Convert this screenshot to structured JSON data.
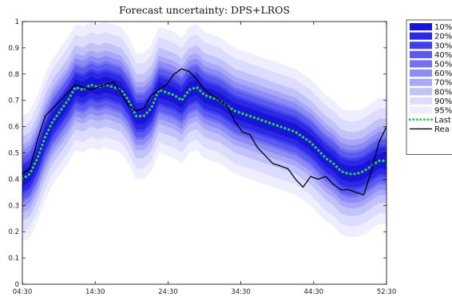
{
  "chart_data": {
    "type": "area",
    "title": "Forecast uncertainty: DPS+LROS",
    "xlabel": "",
    "ylabel": "",
    "xlim": [
      0,
      48
    ],
    "ylim": [
      0,
      1
    ],
    "x_ticks": [
      "04:30",
      "14:30",
      "24:30",
      "34:30",
      "44:30",
      "52:30"
    ],
    "y_ticks": [
      "0",
      "0.1",
      "0.2",
      "0.3",
      "0.4",
      "0.5",
      "0.6",
      "0.7",
      "0.8",
      "0.9",
      "1"
    ],
    "grid": false,
    "legend_position": "outside-right",
    "x": [
      0,
      1,
      2,
      3,
      4,
      5,
      6,
      7,
      8,
      9,
      10,
      11,
      12,
      13,
      14,
      15,
      16,
      17,
      18,
      19,
      20,
      21,
      22,
      23,
      24,
      25,
      26,
      27,
      28,
      29,
      30,
      31,
      32,
      33,
      34,
      35,
      36,
      37,
      38,
      39,
      40,
      41,
      42,
      43,
      44,
      45,
      46,
      47,
      48
    ],
    "bands": [
      {
        "label": "10%",
        "color": "#1a14d6",
        "width": [
          0.03,
          0.03,
          0.03,
          0.03,
          0.03,
          0.03,
          0.03,
          0.03,
          0.03,
          0.03,
          0.03,
          0.03,
          0.03,
          0.03,
          0.03,
          0.03,
          0.03,
          0.03,
          0.03,
          0.03,
          0.03,
          0.03,
          0.03,
          0.03,
          0.03,
          0.03,
          0.03,
          0.03,
          0.03,
          0.03,
          0.03,
          0.03,
          0.03,
          0.03,
          0.03,
          0.03,
          0.03,
          0.03,
          0.03,
          0.03,
          0.03,
          0.03,
          0.03,
          0.03,
          0.03,
          0.03,
          0.03,
          0.03,
          0.03
        ]
      },
      {
        "label": "20%",
        "color": "#2b28e6",
        "width": [
          0.05,
          0.05,
          0.05,
          0.05,
          0.05,
          0.05,
          0.05,
          0.05,
          0.05,
          0.05,
          0.05,
          0.05,
          0.05,
          0.05,
          0.05,
          0.05,
          0.05,
          0.05,
          0.05,
          0.05,
          0.05,
          0.05,
          0.05,
          0.05,
          0.05,
          0.05,
          0.05,
          0.05,
          0.05,
          0.05,
          0.05,
          0.05,
          0.05,
          0.05,
          0.05,
          0.05,
          0.05,
          0.05,
          0.05,
          0.05,
          0.05,
          0.05,
          0.05,
          0.05,
          0.05,
          0.05,
          0.05,
          0.05,
          0.05
        ]
      },
      {
        "label": "30%",
        "color": "#4240ec",
        "width": [
          0.06,
          0.06,
          0.06,
          0.06,
          0.06,
          0.06,
          0.06,
          0.06,
          0.06,
          0.06,
          0.06,
          0.06,
          0.06,
          0.06,
          0.06,
          0.06,
          0.06,
          0.06,
          0.06,
          0.06,
          0.06,
          0.06,
          0.06,
          0.06,
          0.06,
          0.06,
          0.06,
          0.06,
          0.06,
          0.06,
          0.06,
          0.06,
          0.06,
          0.06,
          0.06,
          0.06,
          0.06,
          0.06,
          0.06,
          0.06,
          0.06,
          0.06,
          0.06,
          0.06,
          0.06,
          0.06,
          0.06,
          0.06,
          0.06
        ]
      },
      {
        "label": "40%",
        "color": "#5a59f0",
        "width": [
          0.08,
          0.08,
          0.08,
          0.08,
          0.08,
          0.08,
          0.08,
          0.08,
          0.08,
          0.08,
          0.08,
          0.08,
          0.08,
          0.08,
          0.08,
          0.08,
          0.08,
          0.08,
          0.08,
          0.08,
          0.08,
          0.08,
          0.08,
          0.08,
          0.08,
          0.08,
          0.08,
          0.08,
          0.08,
          0.08,
          0.08,
          0.08,
          0.08,
          0.08,
          0.08,
          0.08,
          0.08,
          0.08,
          0.08,
          0.08,
          0.08,
          0.08,
          0.08,
          0.08,
          0.08,
          0.08,
          0.08,
          0.08,
          0.08
        ]
      },
      {
        "label": "50%",
        "color": "#7372f3",
        "width": [
          0.09,
          0.09,
          0.09,
          0.09,
          0.09,
          0.09,
          0.09,
          0.09,
          0.09,
          0.09,
          0.09,
          0.09,
          0.09,
          0.09,
          0.09,
          0.09,
          0.09,
          0.09,
          0.09,
          0.09,
          0.09,
          0.09,
          0.09,
          0.09,
          0.09,
          0.09,
          0.09,
          0.09,
          0.09,
          0.09,
          0.09,
          0.09,
          0.09,
          0.09,
          0.09,
          0.09,
          0.09,
          0.09,
          0.09,
          0.09,
          0.09,
          0.09,
          0.09,
          0.09,
          0.09,
          0.09,
          0.09,
          0.09,
          0.09
        ]
      },
      {
        "label": "60%",
        "color": "#8d8cf5",
        "width": [
          0.11,
          0.11,
          0.11,
          0.11,
          0.11,
          0.11,
          0.11,
          0.11,
          0.11,
          0.11,
          0.11,
          0.11,
          0.11,
          0.11,
          0.11,
          0.11,
          0.11,
          0.11,
          0.11,
          0.11,
          0.11,
          0.11,
          0.11,
          0.11,
          0.11,
          0.11,
          0.11,
          0.11,
          0.11,
          0.11,
          0.11,
          0.11,
          0.11,
          0.11,
          0.11,
          0.11,
          0.11,
          0.11,
          0.11,
          0.11,
          0.11,
          0.11,
          0.11,
          0.11,
          0.11,
          0.11,
          0.11,
          0.11,
          0.11
        ]
      },
      {
        "label": "70%",
        "color": "#a8a7f8",
        "width": [
          0.13,
          0.13,
          0.13,
          0.13,
          0.13,
          0.13,
          0.13,
          0.13,
          0.13,
          0.13,
          0.13,
          0.13,
          0.13,
          0.13,
          0.13,
          0.13,
          0.13,
          0.13,
          0.13,
          0.13,
          0.13,
          0.13,
          0.13,
          0.13,
          0.13,
          0.13,
          0.13,
          0.13,
          0.13,
          0.13,
          0.13,
          0.13,
          0.13,
          0.13,
          0.13,
          0.13,
          0.13,
          0.13,
          0.13,
          0.13,
          0.13,
          0.13,
          0.13,
          0.13,
          0.13,
          0.13,
          0.13,
          0.13,
          0.13
        ]
      },
      {
        "label": "80%",
        "color": "#c2c2fa",
        "width": [
          0.16,
          0.16,
          0.16,
          0.16,
          0.16,
          0.16,
          0.16,
          0.16,
          0.16,
          0.16,
          0.16,
          0.16,
          0.16,
          0.16,
          0.16,
          0.16,
          0.16,
          0.16,
          0.16,
          0.16,
          0.16,
          0.16,
          0.16,
          0.16,
          0.16,
          0.16,
          0.16,
          0.16,
          0.16,
          0.16,
          0.16,
          0.16,
          0.16,
          0.16,
          0.16,
          0.16,
          0.16,
          0.16,
          0.16,
          0.16,
          0.16,
          0.16,
          0.16,
          0.16,
          0.16,
          0.16,
          0.16,
          0.16,
          0.16
        ]
      },
      {
        "label": "90%",
        "color": "#dcdcfc",
        "width": [
          0.2,
          0.2,
          0.2,
          0.2,
          0.2,
          0.2,
          0.2,
          0.2,
          0.2,
          0.2,
          0.2,
          0.2,
          0.2,
          0.2,
          0.2,
          0.2,
          0.2,
          0.2,
          0.2,
          0.2,
          0.2,
          0.2,
          0.2,
          0.2,
          0.2,
          0.2,
          0.2,
          0.2,
          0.2,
          0.2,
          0.2,
          0.2,
          0.2,
          0.2,
          0.2,
          0.2,
          0.2,
          0.2,
          0.2,
          0.2,
          0.2,
          0.2,
          0.2,
          0.2,
          0.2,
          0.2,
          0.2,
          0.2,
          0.2
        ]
      },
      {
        "label": "95%",
        "color": "#eeeefe",
        "width": [
          0.24,
          0.24,
          0.24,
          0.24,
          0.24,
          0.24,
          0.24,
          0.24,
          0.24,
          0.24,
          0.24,
          0.24,
          0.24,
          0.24,
          0.24,
          0.24,
          0.24,
          0.24,
          0.24,
          0.24,
          0.24,
          0.24,
          0.24,
          0.24,
          0.24,
          0.24,
          0.24,
          0.24,
          0.24,
          0.24,
          0.24,
          0.24,
          0.24,
          0.24,
          0.24,
          0.24,
          0.24,
          0.24,
          0.24,
          0.24,
          0.24,
          0.24,
          0.24,
          0.24,
          0.24,
          0.24,
          0.24,
          0.24,
          0.24
        ]
      }
    ],
    "band_center": [
      0.4,
      0.42,
      0.48,
      0.56,
      0.62,
      0.66,
      0.7,
      0.75,
      0.74,
      0.76,
      0.75,
      0.76,
      0.75,
      0.74,
      0.7,
      0.64,
      0.64,
      0.67,
      0.74,
      0.73,
      0.72,
      0.7,
      0.74,
      0.75,
      0.72,
      0.71,
      0.7,
      0.68,
      0.66,
      0.65,
      0.64,
      0.63,
      0.62,
      0.61,
      0.6,
      0.59,
      0.58,
      0.56,
      0.54,
      0.51,
      0.48,
      0.46,
      0.43,
      0.42,
      0.42,
      0.43,
      0.45,
      0.47,
      0.47
    ],
    "series": [
      {
        "name": "Last",
        "style": "dotted",
        "color": "#2bd54a",
        "y": [
          0.4,
          0.42,
          0.48,
          0.56,
          0.62,
          0.66,
          0.7,
          0.75,
          0.74,
          0.76,
          0.75,
          0.76,
          0.75,
          0.74,
          0.7,
          0.64,
          0.64,
          0.67,
          0.74,
          0.73,
          0.72,
          0.7,
          0.74,
          0.75,
          0.72,
          0.71,
          0.7,
          0.68,
          0.66,
          0.65,
          0.64,
          0.63,
          0.62,
          0.61,
          0.6,
          0.59,
          0.58,
          0.56,
          0.54,
          0.51,
          0.48,
          0.46,
          0.43,
          0.42,
          0.42,
          0.43,
          0.45,
          0.47,
          0.47
        ]
      },
      {
        "name": "Rea",
        "style": "solid",
        "color": "#000000",
        "y": [
          0.42,
          0.44,
          0.55,
          0.64,
          0.67,
          0.7,
          0.73,
          0.76,
          0.75,
          0.74,
          0.75,
          0.76,
          0.77,
          0.73,
          0.68,
          0.66,
          0.67,
          0.72,
          0.74,
          0.76,
          0.8,
          0.82,
          0.81,
          0.78,
          0.74,
          0.72,
          0.7,
          0.68,
          0.62,
          0.58,
          0.57,
          0.52,
          0.49,
          0.46,
          0.45,
          0.44,
          0.4,
          0.37,
          0.41,
          0.4,
          0.41,
          0.38,
          0.36,
          0.36,
          0.35,
          0.34,
          0.43,
          0.54,
          0.6
        ]
      }
    ]
  }
}
